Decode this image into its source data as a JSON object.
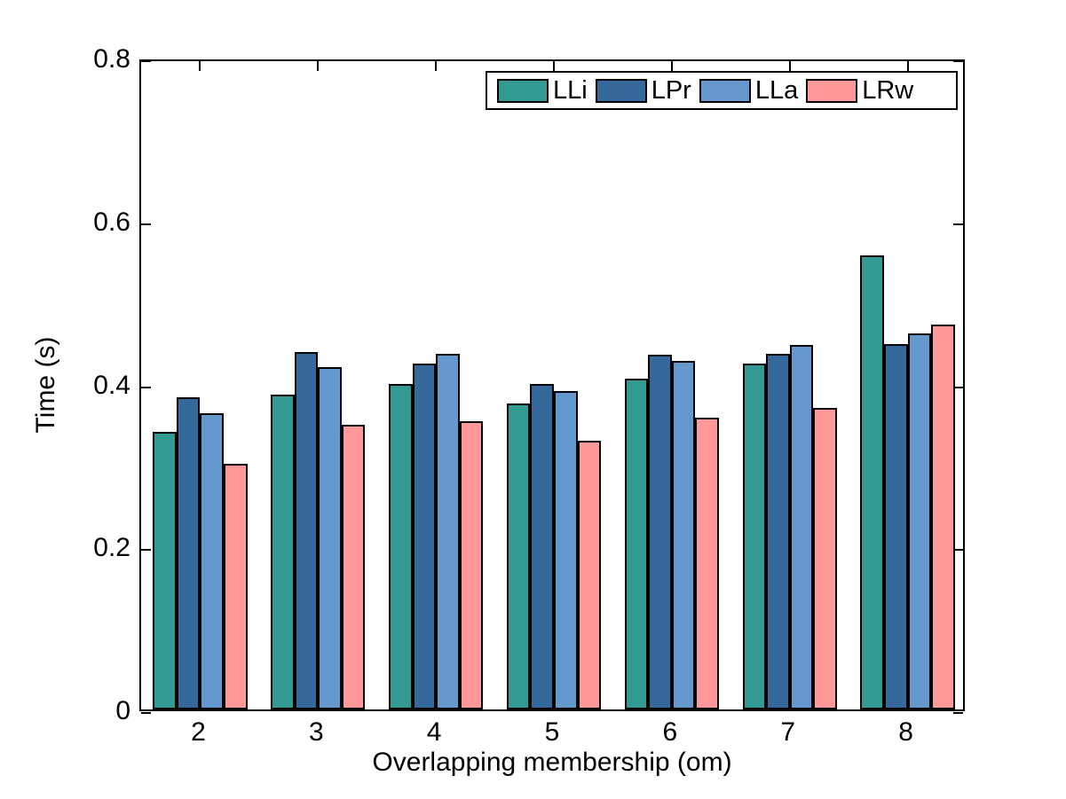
{
  "chart_data": {
    "type": "bar",
    "title": "",
    "xlabel": "Overlapping membership (om)",
    "ylabel": "Time (s)",
    "categories": [
      "2",
      "3",
      "4",
      "5",
      "6",
      "7",
      "8"
    ],
    "series": [
      {
        "name": "LLi",
        "color": "#339A93",
        "values": [
          0.341,
          0.386,
          0.4,
          0.376,
          0.406,
          0.425,
          0.557
        ]
      },
      {
        "name": "LPr",
        "color": "#35689B",
        "values": [
          0.383,
          0.439,
          0.424,
          0.4,
          0.435,
          0.437,
          0.448
        ]
      },
      {
        "name": "LLa",
        "color": "#6599CE",
        "values": [
          0.364,
          0.42,
          0.437,
          0.391,
          0.428,
          0.447,
          0.462
        ]
      },
      {
        "name": "LRw",
        "color": "#FF9999",
        "values": [
          0.302,
          0.349,
          0.354,
          0.33,
          0.358,
          0.37,
          0.472
        ]
      }
    ],
    "ylim": [
      0,
      0.8
    ],
    "yticks": [
      0,
      0.2,
      0.4,
      0.6,
      0.8
    ],
    "ytick_labels": [
      "0",
      "0.2",
      "0.4",
      "0.6",
      "0.8"
    ],
    "grid": false,
    "legend_position": "top-right",
    "bar_group_fraction": 0.8,
    "bar_edge_color": "#000000",
    "axis_color": "#000000",
    "background_color": "#FFFFFF"
  }
}
